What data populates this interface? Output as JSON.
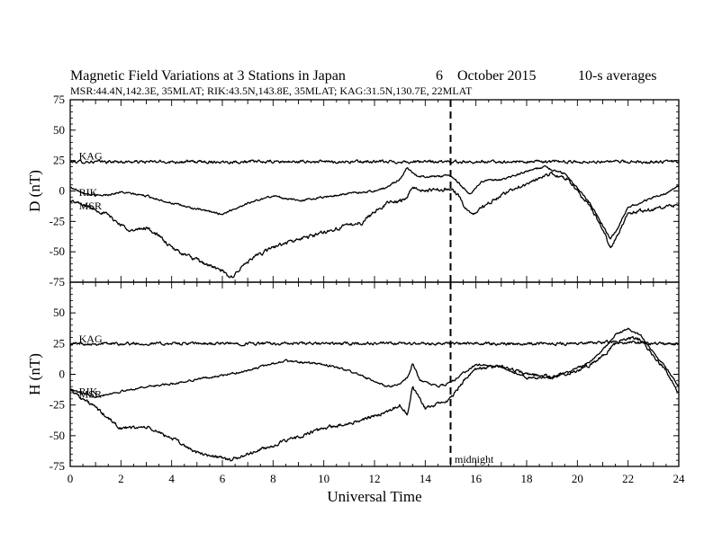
{
  "figure": {
    "title": "Magnetic Field Variations at 3 Stations in Japan",
    "date_day": "6",
    "date_month_year": "October 2015",
    "averaging": "10-s averages",
    "stations_line": "MSR:44.4N,142.3E, 35MLAT;  RIK:43.5N,143.8E, 35MLAT;  KAG:31.5N,130.7E, 22MLAT",
    "xlabel": "Universal Time",
    "midnight_label": "midnight",
    "line_color": "#000000"
  },
  "chart_data": [
    {
      "type": "line",
      "panel": "D",
      "ylabel": "D (nT)",
      "xlim": [
        0,
        24
      ],
      "ylim": [
        -75,
        75
      ],
      "xticks": [
        0,
        2,
        4,
        6,
        8,
        10,
        12,
        14,
        16,
        18,
        20,
        22,
        24
      ],
      "yticks": [
        -75,
        -50,
        -25,
        0,
        25,
        50,
        75
      ],
      "vline": 15,
      "series": [
        {
          "name": "KAG",
          "label_at": [
            0.2,
            26
          ],
          "noise": 1.2,
          "points": [
            [
              0,
              24
            ],
            [
              2,
              24
            ],
            [
              4,
              24
            ],
            [
              6,
              24
            ],
            [
              8,
              24
            ],
            [
              10,
              24
            ],
            [
              12,
              24
            ],
            [
              13.5,
              24
            ],
            [
              15,
              24
            ],
            [
              17,
              24
            ],
            [
              19,
              24
            ],
            [
              20,
              24
            ],
            [
              22,
              24
            ],
            [
              24,
              24
            ]
          ]
        },
        {
          "name": "RIK",
          "label_at": [
            0.2,
            -4
          ],
          "noise": 0.8,
          "points": [
            [
              0,
              3
            ],
            [
              0.5,
              -1
            ],
            [
              1,
              -4
            ],
            [
              1.5,
              -3
            ],
            [
              2,
              -1
            ],
            [
              3,
              -4
            ],
            [
              4,
              -10
            ],
            [
              5,
              -15
            ],
            [
              6,
              -19
            ],
            [
              7,
              -10
            ],
            [
              8,
              -4
            ],
            [
              9,
              -8
            ],
            [
              10,
              -5
            ],
            [
              11,
              -2
            ],
            [
              12,
              0
            ],
            [
              12.5,
              3
            ],
            [
              13,
              10
            ],
            [
              13.3,
              19
            ],
            [
              13.7,
              12
            ],
            [
              14.5,
              12
            ],
            [
              15,
              13
            ],
            [
              15.5,
              3
            ],
            [
              15.8,
              -3
            ],
            [
              16.2,
              8
            ],
            [
              17,
              9
            ],
            [
              18,
              16
            ],
            [
              18.7,
              20
            ],
            [
              19.5,
              14
            ],
            [
              20,
              3
            ],
            [
              20.5,
              -10
            ],
            [
              21,
              -28
            ],
            [
              21.3,
              -40
            ],
            [
              21.6,
              -30
            ],
            [
              22,
              -13
            ],
            [
              22.5,
              -10
            ],
            [
              23,
              -5
            ],
            [
              23.5,
              -2
            ],
            [
              24,
              4
            ]
          ]
        },
        {
          "name": "MSR",
          "label_at": [
            0.2,
            -15
          ],
          "noise": 1.5,
          "points": [
            [
              0,
              -8
            ],
            [
              1,
              -15
            ],
            [
              1.5,
              -20
            ],
            [
              2,
              -28
            ],
            [
              2.5,
              -33
            ],
            [
              3,
              -30
            ],
            [
              3.5,
              -37
            ],
            [
              4,
              -47
            ],
            [
              5,
              -57
            ],
            [
              6,
              -66
            ],
            [
              6.3,
              -72
            ],
            [
              7,
              -58
            ],
            [
              8,
              -46
            ],
            [
              9,
              -40
            ],
            [
              10,
              -34
            ],
            [
              11,
              -28
            ],
            [
              11.5,
              -26
            ],
            [
              12,
              -17
            ],
            [
              12.5,
              -10
            ],
            [
              13,
              -8
            ],
            [
              13.3,
              -5
            ],
            [
              13.5,
              3
            ],
            [
              14,
              0
            ],
            [
              15,
              2
            ],
            [
              15.3,
              -3
            ],
            [
              15.6,
              -15
            ],
            [
              15.9,
              -19
            ],
            [
              16.5,
              -10
            ],
            [
              17.5,
              2
            ],
            [
              18.5,
              10
            ],
            [
              19,
              14
            ],
            [
              19.6,
              10
            ],
            [
              20,
              0
            ],
            [
              20.5,
              -13
            ],
            [
              21,
              -31
            ],
            [
              21.3,
              -47
            ],
            [
              21.7,
              -31
            ],
            [
              22,
              -18
            ],
            [
              23,
              -15
            ],
            [
              24,
              -12
            ]
          ]
        }
      ]
    },
    {
      "type": "line",
      "panel": "H",
      "ylabel": "H (nT)",
      "xlim": [
        0,
        24
      ],
      "ylim": [
        -75,
        75
      ],
      "xticks": [
        0,
        2,
        4,
        6,
        8,
        10,
        12,
        14,
        16,
        18,
        20,
        22,
        24
      ],
      "yticks": [
        -75,
        -50,
        -25,
        0,
        25,
        50,
        75
      ],
      "vline": 15,
      "series": [
        {
          "name": "KAG",
          "label_at": [
            0.2,
            26
          ],
          "noise": 1.2,
          "points": [
            [
              0,
              25
            ],
            [
              3,
              25
            ],
            [
              6,
              25
            ],
            [
              9,
              25
            ],
            [
              12,
              25
            ],
            [
              14,
              25
            ],
            [
              16,
              25
            ],
            [
              18,
              25
            ],
            [
              20,
              25
            ],
            [
              21,
              26
            ],
            [
              22,
              26
            ],
            [
              23,
              25
            ],
            [
              24,
              25
            ]
          ]
        },
        {
          "name": "RIK",
          "label_at": [
            0.2,
            -17
          ],
          "noise": 0.8,
          "points": [
            [
              0,
              -12
            ],
            [
              0.5,
              -16
            ],
            [
              1,
              -18
            ],
            [
              2,
              -14
            ],
            [
              3,
              -10
            ],
            [
              4,
              -8
            ],
            [
              5,
              -4
            ],
            [
              6,
              -1
            ],
            [
              7,
              3
            ],
            [
              8,
              9
            ],
            [
              8.5,
              11
            ],
            [
              9,
              10
            ],
            [
              10,
              8
            ],
            [
              11,
              3
            ],
            [
              12,
              -6
            ],
            [
              12.5,
              -10
            ],
            [
              13,
              -8
            ],
            [
              13.3,
              -3
            ],
            [
              13.5,
              9
            ],
            [
              13.8,
              -5
            ],
            [
              14.5,
              -10
            ],
            [
              15,
              -7
            ],
            [
              15.5,
              1
            ],
            [
              16,
              8
            ],
            [
              17,
              6
            ],
            [
              18,
              -3
            ],
            [
              19,
              -3
            ],
            [
              20,
              5
            ],
            [
              20.5,
              10
            ],
            [
              21,
              20
            ],
            [
              21.5,
              32
            ],
            [
              22,
              37
            ],
            [
              22.5,
              32
            ],
            [
              23,
              18
            ],
            [
              23.5,
              5
            ],
            [
              24,
              -10
            ]
          ]
        },
        {
          "name": "MSR",
          "label_at": [
            0.2,
            -19
          ],
          "noise": 1.4,
          "points": [
            [
              0,
              -12
            ],
            [
              0.5,
              -20
            ],
            [
              1,
              -27
            ],
            [
              1.5,
              -36
            ],
            [
              2,
              -44
            ],
            [
              3,
              -43
            ],
            [
              4,
              -52
            ],
            [
              5,
              -64
            ],
            [
              6,
              -68
            ],
            [
              6.3,
              -70
            ],
            [
              7,
              -65
            ],
            [
              8,
              -58
            ],
            [
              9,
              -51
            ],
            [
              10,
              -44
            ],
            [
              11,
              -40
            ],
            [
              12,
              -34
            ],
            [
              12.5,
              -30
            ],
            [
              13,
              -25
            ],
            [
              13.3,
              -33
            ],
            [
              13.5,
              -10
            ],
            [
              14,
              -28
            ],
            [
              15,
              -20
            ],
            [
              15.5,
              -6
            ],
            [
              16,
              4
            ],
            [
              17,
              7
            ],
            [
              18,
              0
            ],
            [
              19,
              -2
            ],
            [
              20,
              3
            ],
            [
              20.5,
              8
            ],
            [
              21,
              15
            ],
            [
              21.5,
              25
            ],
            [
              22,
              30
            ],
            [
              22.5,
              28
            ],
            [
              23,
              15
            ],
            [
              23.5,
              3
            ],
            [
              24,
              -15
            ]
          ]
        }
      ]
    }
  ]
}
